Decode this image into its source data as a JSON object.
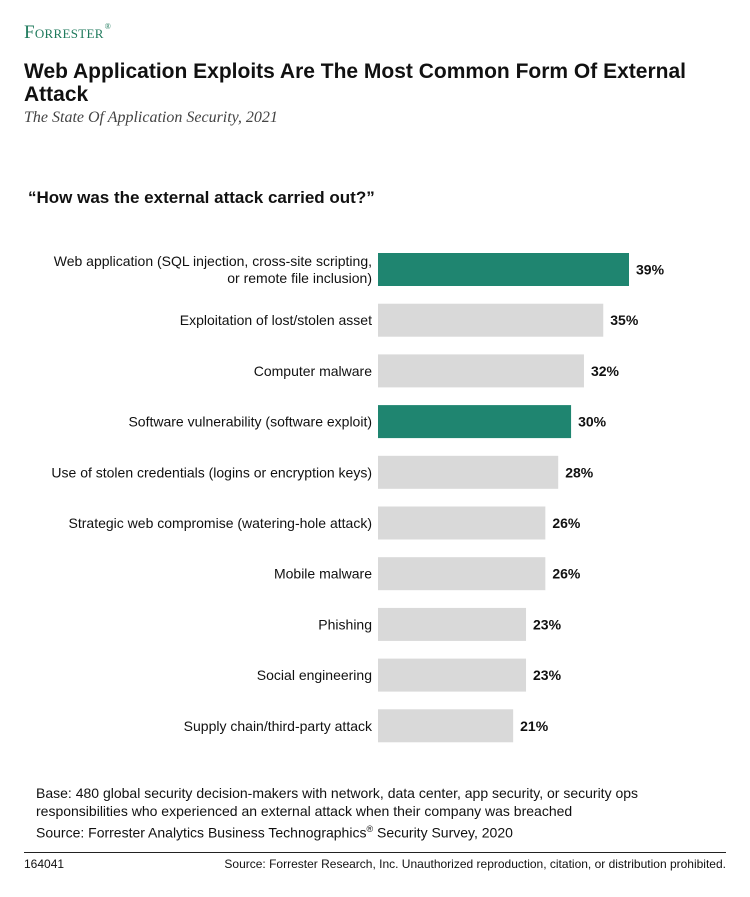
{
  "header": {
    "logo": "Forrester",
    "title": "Web Application Exploits Are The Most Common Form Of External Attack",
    "subtitle": "The State Of Application Security, 2021"
  },
  "chart_data": {
    "type": "bar",
    "orientation": "horizontal",
    "title": "“How was the external attack carried out?”",
    "categories": [
      "Web application (SQL injection, cross-site scripting, or remote file inclusion)",
      "Exploitation of lost/stolen asset",
      "Computer malware",
      "Software vulnerability (software exploit)",
      "Use of stolen credentials (logins or encryption keys)",
      "Strategic web compromise (watering-hole attack)",
      "Mobile malware",
      "Phishing",
      "Social engineering",
      "Supply chain/third-party attack"
    ],
    "category_lines": [
      [
        "Web application (SQL injection, cross-site scripting,",
        "or remote file inclusion)"
      ],
      [
        "Exploitation of lost/stolen asset"
      ],
      [
        "Computer malware"
      ],
      [
        "Software vulnerability (software exploit)"
      ],
      [
        "Use of stolen credentials (logins or encryption keys)"
      ],
      [
        "Strategic web compromise (watering-hole attack)"
      ],
      [
        "Mobile malware"
      ],
      [
        "Phishing"
      ],
      [
        "Social engineering"
      ],
      [
        "Supply chain/third-party attack"
      ]
    ],
    "values": [
      39,
      35,
      32,
      30,
      28,
      26,
      26,
      23,
      23,
      21
    ],
    "value_labels": [
      "39%",
      "35%",
      "32%",
      "30%",
      "28%",
      "26%",
      "26%",
      "23%",
      "23%",
      "21%"
    ],
    "highlighted": [
      true,
      false,
      false,
      true,
      false,
      false,
      false,
      false,
      false,
      false
    ],
    "xlim": [
      0,
      39
    ],
    "grid": false,
    "colors": {
      "highlight": "#1f8570",
      "default": "#d9d9d9"
    }
  },
  "footer": {
    "base_note": "Base: 480 global security decision-makers with network, data center, app security, or security ops responsibilities who experienced an external attack when their company was breached",
    "source_prefix": "Source: Forrester Analytics Business Technographics",
    "registered_mark": "®",
    "source_suffix": " Security Survey, 2020",
    "figure_id": "164041",
    "copyright": "Source: Forrester Research, Inc. Unauthorized reproduction, citation, or distribution prohibited."
  }
}
